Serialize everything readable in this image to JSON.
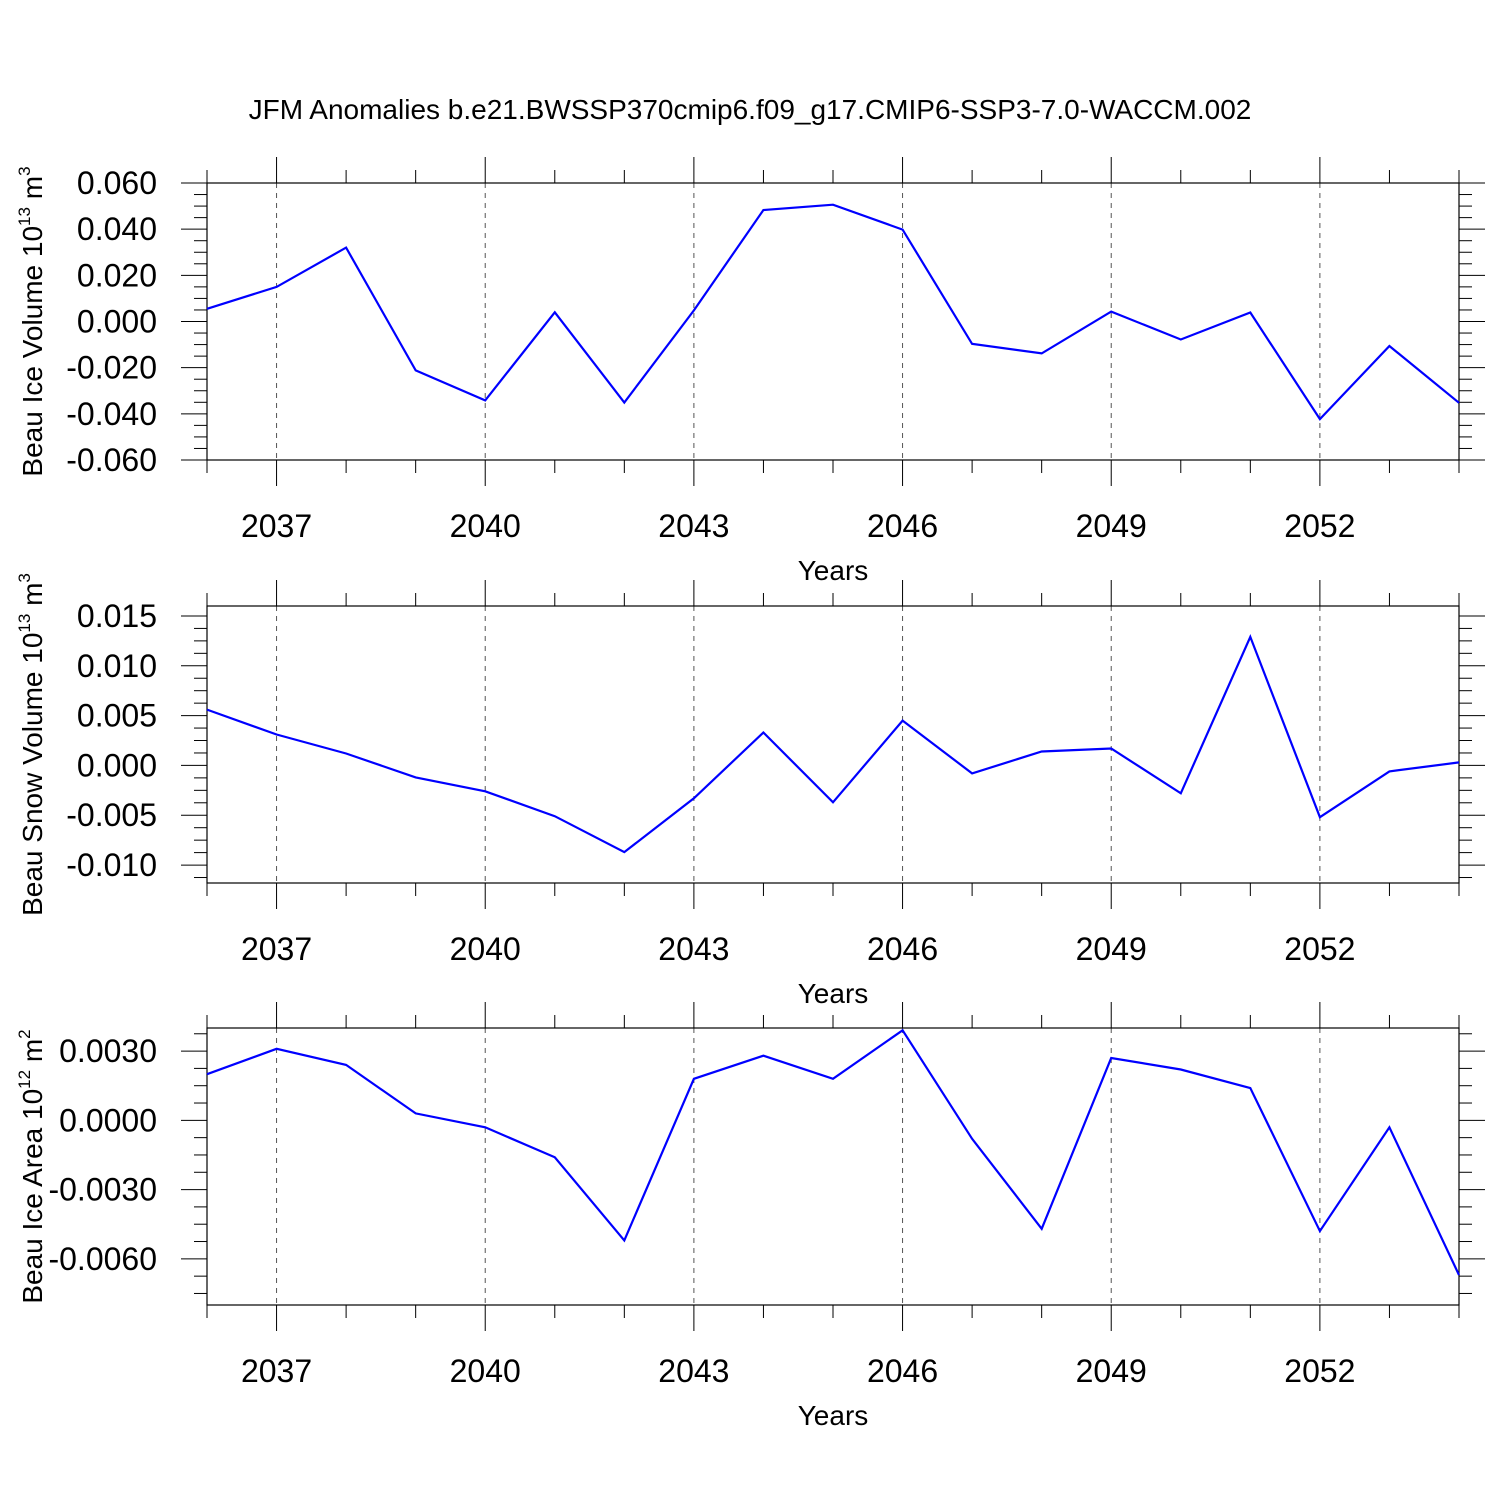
{
  "title": "JFM Anomalies b.e21.BWSSP370cmip6.f09_g17.CMIP6-SSP3-7.0-WACCM.002",
  "chart_data": [
    {
      "type": "line",
      "ylabel_main": "Beau Ice Volume 10",
      "ylabel_exp": "13",
      "ylabel_unit": "m",
      "ylabel_unit_exp": "3",
      "xlabel": "Years",
      "xlim": [
        2036,
        2054
      ],
      "ylim": [
        -0.06,
        0.06
      ],
      "y_ticks": [
        {
          "v": 0.06,
          "label": "0.060"
        },
        {
          "v": 0.04,
          "label": "0.040"
        },
        {
          "v": 0.02,
          "label": "0.020"
        },
        {
          "v": 0.0,
          "label": "0.000"
        },
        {
          "v": -0.02,
          "label": "-0.020"
        },
        {
          "v": -0.04,
          "label": "-0.040"
        },
        {
          "v": -0.06,
          "label": "-0.060"
        }
      ],
      "x_tick_labels": [
        "2037",
        "2040",
        "2043",
        "2046",
        "2049",
        "2052"
      ],
      "color": "#0000ff",
      "x": [
        2036,
        2037,
        2038,
        2039,
        2040,
        2041,
        2042,
        2043,
        2044,
        2045,
        2046,
        2047,
        2048,
        2049,
        2050,
        2051,
        2052,
        2053,
        2054
      ],
      "values": [
        0.0055,
        0.015,
        0.032,
        -0.0212,
        -0.0342,
        0.004,
        -0.0351,
        0.0048,
        0.0483,
        0.0506,
        0.0398,
        -0.0097,
        -0.0138,
        0.0043,
        -0.0078,
        0.0039,
        -0.0423,
        -0.0106,
        -0.0352
      ]
    },
    {
      "type": "line",
      "ylabel_main": "Beau Snow Volume 10",
      "ylabel_exp": "13",
      "ylabel_unit": "m",
      "ylabel_unit_exp": "3",
      "xlabel": "Years",
      "xlim": [
        2036,
        2054
      ],
      "ylim": [
        -0.0118,
        0.016
      ],
      "y_ticks": [
        {
          "v": 0.015,
          "label": "0.015"
        },
        {
          "v": 0.01,
          "label": "0.010"
        },
        {
          "v": 0.005,
          "label": "0.005"
        },
        {
          "v": 0.0,
          "label": "0.000"
        },
        {
          "v": -0.005,
          "label": "-0.005"
        },
        {
          "v": -0.01,
          "label": "-0.010"
        }
      ],
      "x_tick_labels": [
        "2037",
        "2040",
        "2043",
        "2046",
        "2049",
        "2052"
      ],
      "color": "#0000ff",
      "x": [
        2036,
        2037,
        2038,
        2039,
        2040,
        2041,
        2042,
        2043,
        2044,
        2045,
        2046,
        2047,
        2048,
        2049,
        2050,
        2051,
        2052,
        2053,
        2054
      ],
      "values": [
        0.0056,
        0.0031,
        0.0012,
        -0.0012,
        -0.0026,
        -0.0051,
        -0.0087,
        -0.0033,
        0.0033,
        -0.0037,
        0.0045,
        -0.0008,
        0.0014,
        0.0017,
        -0.0028,
        0.0129,
        -0.0052,
        -0.0006,
        0.0003
      ]
    },
    {
      "type": "line",
      "ylabel_main": "Beau Ice Area 10",
      "ylabel_exp": "12",
      "ylabel_unit": "m",
      "ylabel_unit_exp": "2",
      "xlabel": "Years",
      "xlim": [
        2036,
        2054
      ],
      "ylim": [
        -0.008,
        0.004
      ],
      "y_ticks": [
        {
          "v": 0.003,
          "label": "0.0030"
        },
        {
          "v": 0.0,
          "label": "0.0000"
        },
        {
          "v": -0.003,
          "label": "-0.0030"
        },
        {
          "v": -0.006,
          "label": "-0.0060"
        }
      ],
      "x_tick_labels": [
        "2037",
        "2040",
        "2043",
        "2046",
        "2049",
        "2052"
      ],
      "color": "#0000ff",
      "x": [
        2036,
        2037,
        2038,
        2039,
        2040,
        2041,
        2042,
        2043,
        2044,
        2045,
        2046,
        2047,
        2048,
        2049,
        2050,
        2051,
        2052,
        2053,
        2054
      ],
      "values": [
        0.002,
        0.0031,
        0.0024,
        0.0003,
        -0.0003,
        -0.0016,
        -0.0052,
        0.0018,
        0.0028,
        0.0018,
        0.0039,
        -0.0008,
        -0.0047,
        0.0027,
        0.0022,
        0.0014,
        -0.0048,
        -0.0003,
        -0.0067
      ]
    }
  ]
}
